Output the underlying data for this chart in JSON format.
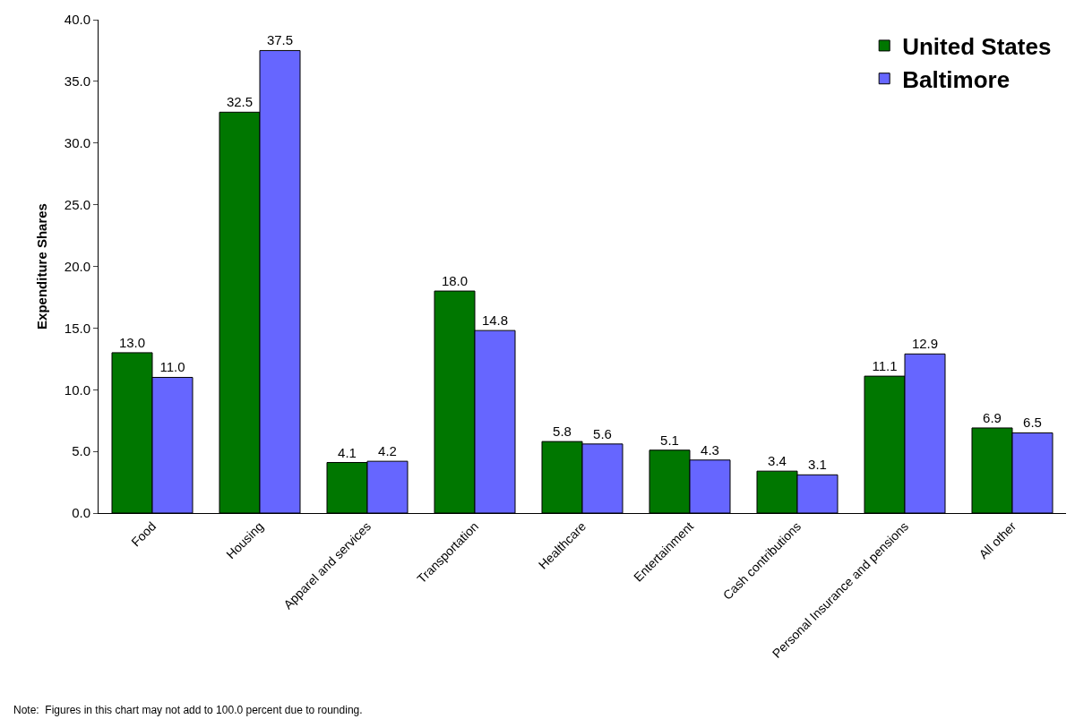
{
  "chart_data": {
    "type": "bar",
    "ylabel": "Expenditure Shares",
    "categories": [
      "Food",
      "Housing",
      "Apparel and services",
      "Transportation",
      "Healthcare",
      "Entertainment",
      "Cash contributions",
      "Personal Insurance and pensions",
      "All other"
    ],
    "series": [
      {
        "name": "United States",
        "color": "#007700",
        "values": [
          13.0,
          32.5,
          4.1,
          18.0,
          5.8,
          5.1,
          3.4,
          11.1,
          6.9
        ],
        "value_labels": [
          "13.0",
          "32.5",
          "4.1",
          "18.0",
          "5.8",
          "5.1",
          "3.4",
          "11.1",
          "6.9"
        ]
      },
      {
        "name": "Baltimore",
        "color": "#6666ff",
        "values": [
          11.0,
          37.5,
          4.2,
          14.8,
          5.6,
          4.3,
          3.1,
          12.9,
          6.5
        ],
        "value_labels": [
          "11.0",
          "37.5",
          "4.2",
          "14.8",
          "5.6",
          "4.3",
          "3.1",
          "12.9",
          "6.5"
        ]
      }
    ],
    "ylim": [
      0,
      40
    ],
    "yticks": [
      {
        "value": 0,
        "label": "0.0"
      },
      {
        "value": 5,
        "label": "5.0"
      },
      {
        "value": 10,
        "label": "10.0"
      },
      {
        "value": 15,
        "label": "15.0"
      },
      {
        "value": 20,
        "label": "20.0"
      },
      {
        "value": 25,
        "label": "25.0"
      },
      {
        "value": 30,
        "label": "30.0"
      },
      {
        "value": 35,
        "label": "35.0"
      },
      {
        "value": 40,
        "label": "40.0"
      }
    ],
    "legend": "top right",
    "annotations": [
      "Note:  Figures in this chart may not add to 100.0 percent due to rounding."
    ]
  }
}
